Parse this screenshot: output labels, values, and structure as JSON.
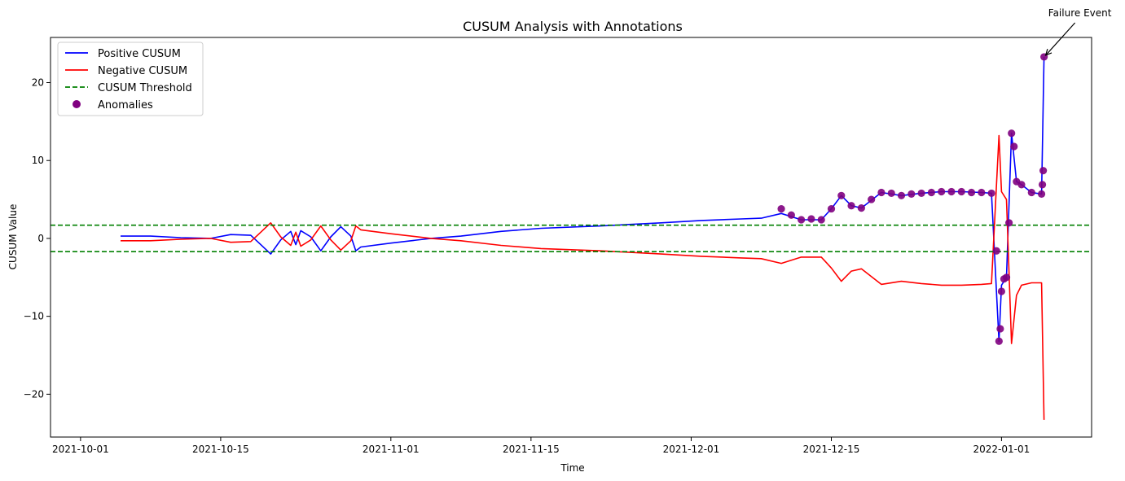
{
  "chart_data": {
    "type": "line",
    "title": "CUSUM Analysis with Annotations",
    "xlabel": "Time",
    "ylabel": "CUSUM Value",
    "xlim": [
      "2021-09-28",
      "2022-01-10"
    ],
    "ylim": [
      -25.5,
      25.8
    ],
    "x_ticks": [
      "2021-10-01",
      "2021-10-15",
      "2021-11-01",
      "2021-11-15",
      "2021-12-01",
      "2021-12-15",
      "2022-01-01"
    ],
    "y_ticks": [
      -20,
      -10,
      0,
      10,
      20
    ],
    "grid": false,
    "legend_position": "top-left",
    "thresholds": [
      1.7,
      -1.7
    ],
    "series": [
      {
        "name": "Positive CUSUM",
        "color": "#0000ff",
        "points": [
          [
            "2021-10-05",
            0.3
          ],
          [
            "2021-10-08",
            0.3
          ],
          [
            "2021-10-11",
            0.1
          ],
          [
            "2021-10-14",
            0.0
          ],
          [
            "2021-10-16",
            0.5
          ],
          [
            "2021-10-18",
            0.4
          ],
          [
            "2021-10-19",
            -0.8
          ],
          [
            "2021-10-20",
            -2.0
          ],
          [
            "2021-10-21",
            -0.2
          ],
          [
            "2021-10-22",
            0.9
          ],
          [
            "2021-10-22T12:00",
            -0.8
          ],
          [
            "2021-10-23",
            1.0
          ],
          [
            "2021-10-24",
            0.2
          ],
          [
            "2021-10-25",
            -1.6
          ],
          [
            "2021-10-26",
            0.2
          ],
          [
            "2021-10-27",
            1.5
          ],
          [
            "2021-10-28",
            0.3
          ],
          [
            "2021-10-28T12:00",
            -1.6
          ],
          [
            "2021-10-29",
            -1.1
          ],
          [
            "2021-11-01",
            -0.6
          ],
          [
            "2021-11-05",
            0.0
          ],
          [
            "2021-11-08",
            0.3
          ],
          [
            "2021-11-12",
            0.9
          ],
          [
            "2021-11-16",
            1.3
          ],
          [
            "2021-11-22",
            1.6
          ],
          [
            "2021-11-28",
            2.0
          ],
          [
            "2021-12-02",
            2.3
          ],
          [
            "2021-12-06",
            2.5
          ],
          [
            "2021-12-08",
            2.6
          ],
          [
            "2021-12-10",
            3.2
          ],
          [
            "2021-12-12",
            2.4
          ],
          [
            "2021-12-14",
            2.4
          ],
          [
            "2021-12-15",
            3.8
          ],
          [
            "2021-12-16",
            5.5
          ],
          [
            "2021-12-17",
            4.2
          ],
          [
            "2021-12-18",
            3.9
          ],
          [
            "2021-12-20",
            5.9
          ],
          [
            "2021-12-22",
            5.5
          ],
          [
            "2021-12-24",
            5.8
          ],
          [
            "2021-12-26",
            6.0
          ],
          [
            "2021-12-28",
            6.0
          ],
          [
            "2021-12-30",
            5.9
          ],
          [
            "2021-12-31",
            5.8
          ],
          [
            "2021-12-31T18:00",
            -13.2
          ],
          [
            "2022-01-01",
            -6.0
          ],
          [
            "2022-01-01T12:00",
            -5.0
          ],
          [
            "2022-01-02",
            13.5
          ],
          [
            "2022-01-02T12:00",
            7.3
          ],
          [
            "2022-01-03",
            6.9
          ],
          [
            "2022-01-04",
            5.9
          ],
          [
            "2022-01-05",
            5.7
          ],
          [
            "2022-01-05T06:00",
            23.3
          ]
        ]
      },
      {
        "name": "Negative CUSUM",
        "color": "#ff0000",
        "points": [
          [
            "2021-10-05",
            -0.3
          ],
          [
            "2021-10-08",
            -0.3
          ],
          [
            "2021-10-11",
            -0.1
          ],
          [
            "2021-10-14",
            0.0
          ],
          [
            "2021-10-16",
            -0.5
          ],
          [
            "2021-10-18",
            -0.4
          ],
          [
            "2021-10-19",
            0.8
          ],
          [
            "2021-10-20",
            2.0
          ],
          [
            "2021-10-21",
            0.2
          ],
          [
            "2021-10-22",
            -0.9
          ],
          [
            "2021-10-22T12:00",
            0.8
          ],
          [
            "2021-10-23",
            -1.0
          ],
          [
            "2021-10-24",
            -0.2
          ],
          [
            "2021-10-25",
            1.6
          ],
          [
            "2021-10-26",
            -0.2
          ],
          [
            "2021-10-27",
            -1.5
          ],
          [
            "2021-10-28",
            -0.3
          ],
          [
            "2021-10-28T12:00",
            1.6
          ],
          [
            "2021-10-29",
            1.1
          ],
          [
            "2021-11-01",
            0.6
          ],
          [
            "2021-11-05",
            0.0
          ],
          [
            "2021-11-08",
            -0.3
          ],
          [
            "2021-11-12",
            -0.9
          ],
          [
            "2021-11-16",
            -1.3
          ],
          [
            "2021-11-22",
            -1.6
          ],
          [
            "2021-11-28",
            -2.0
          ],
          [
            "2021-12-02",
            -2.3
          ],
          [
            "2021-12-06",
            -2.5
          ],
          [
            "2021-12-08",
            -2.6
          ],
          [
            "2021-12-10",
            -3.2
          ],
          [
            "2021-12-12",
            -2.4
          ],
          [
            "2021-12-14",
            -2.4
          ],
          [
            "2021-12-15",
            -3.8
          ],
          [
            "2021-12-16",
            -5.5
          ],
          [
            "2021-12-17",
            -4.2
          ],
          [
            "2021-12-18",
            -3.9
          ],
          [
            "2021-12-20",
            -5.9
          ],
          [
            "2021-12-22",
            -5.5
          ],
          [
            "2021-12-24",
            -5.8
          ],
          [
            "2021-12-26",
            -6.0
          ],
          [
            "2021-12-28",
            -6.0
          ],
          [
            "2021-12-30",
            -5.9
          ],
          [
            "2021-12-31",
            -5.8
          ],
          [
            "2021-12-31T18:00",
            13.2
          ],
          [
            "2022-01-01",
            6.0
          ],
          [
            "2022-01-01T12:00",
            5.0
          ],
          [
            "2022-01-02",
            -13.5
          ],
          [
            "2022-01-02T12:00",
            -7.3
          ],
          [
            "2022-01-03",
            -6.0
          ],
          [
            "2022-01-04",
            -5.7
          ],
          [
            "2022-01-05",
            -5.7
          ],
          [
            "2022-01-05T06:00",
            -23.3
          ]
        ]
      }
    ],
    "anomalies": {
      "name": "Anomalies",
      "color": "#800080",
      "points": [
        [
          "2021-12-10",
          3.8
        ],
        [
          "2021-12-11",
          3.0
        ],
        [
          "2021-12-12",
          2.4
        ],
        [
          "2021-12-13",
          2.5
        ],
        [
          "2021-12-14",
          2.4
        ],
        [
          "2021-12-15",
          3.8
        ],
        [
          "2021-12-16",
          5.5
        ],
        [
          "2021-12-17",
          4.2
        ],
        [
          "2021-12-18",
          3.9
        ],
        [
          "2021-12-19",
          5.0
        ],
        [
          "2021-12-20",
          5.9
        ],
        [
          "2021-12-21",
          5.8
        ],
        [
          "2021-12-22",
          5.5
        ],
        [
          "2021-12-23",
          5.7
        ],
        [
          "2021-12-24",
          5.8
        ],
        [
          "2021-12-25",
          5.9
        ],
        [
          "2021-12-26",
          6.0
        ],
        [
          "2021-12-27",
          6.0
        ],
        [
          "2021-12-28",
          6.0
        ],
        [
          "2021-12-29",
          5.9
        ],
        [
          "2021-12-30",
          5.9
        ],
        [
          "2021-12-31",
          5.8
        ],
        [
          "2021-12-31T12:00",
          -1.6
        ],
        [
          "2021-12-31T18:00",
          -13.2
        ],
        [
          "2021-12-31T21:00",
          -11.6
        ],
        [
          "2022-01-01",
          -6.8
        ],
        [
          "2022-01-01T06:00",
          -5.2
        ],
        [
          "2022-01-01T12:00",
          -5.0
        ],
        [
          "2022-01-01T18:00",
          2.0
        ],
        [
          "2022-01-02",
          13.5
        ],
        [
          "2022-01-02T06:00",
          11.8
        ],
        [
          "2022-01-02T12:00",
          7.3
        ],
        [
          "2022-01-03",
          6.9
        ],
        [
          "2022-01-04",
          5.9
        ],
        [
          "2022-01-05",
          5.7
        ],
        [
          "2022-01-05T02:00",
          6.9
        ],
        [
          "2022-01-05T04:00",
          8.7
        ],
        [
          "2022-01-05T06:00",
          23.3
        ]
      ]
    },
    "threshold_name": "CUSUM Threshold",
    "threshold_color": "#008000",
    "annotation": {
      "text": "Failure Event",
      "x": "2022-01-05T06:00",
      "y": 23.3
    }
  }
}
